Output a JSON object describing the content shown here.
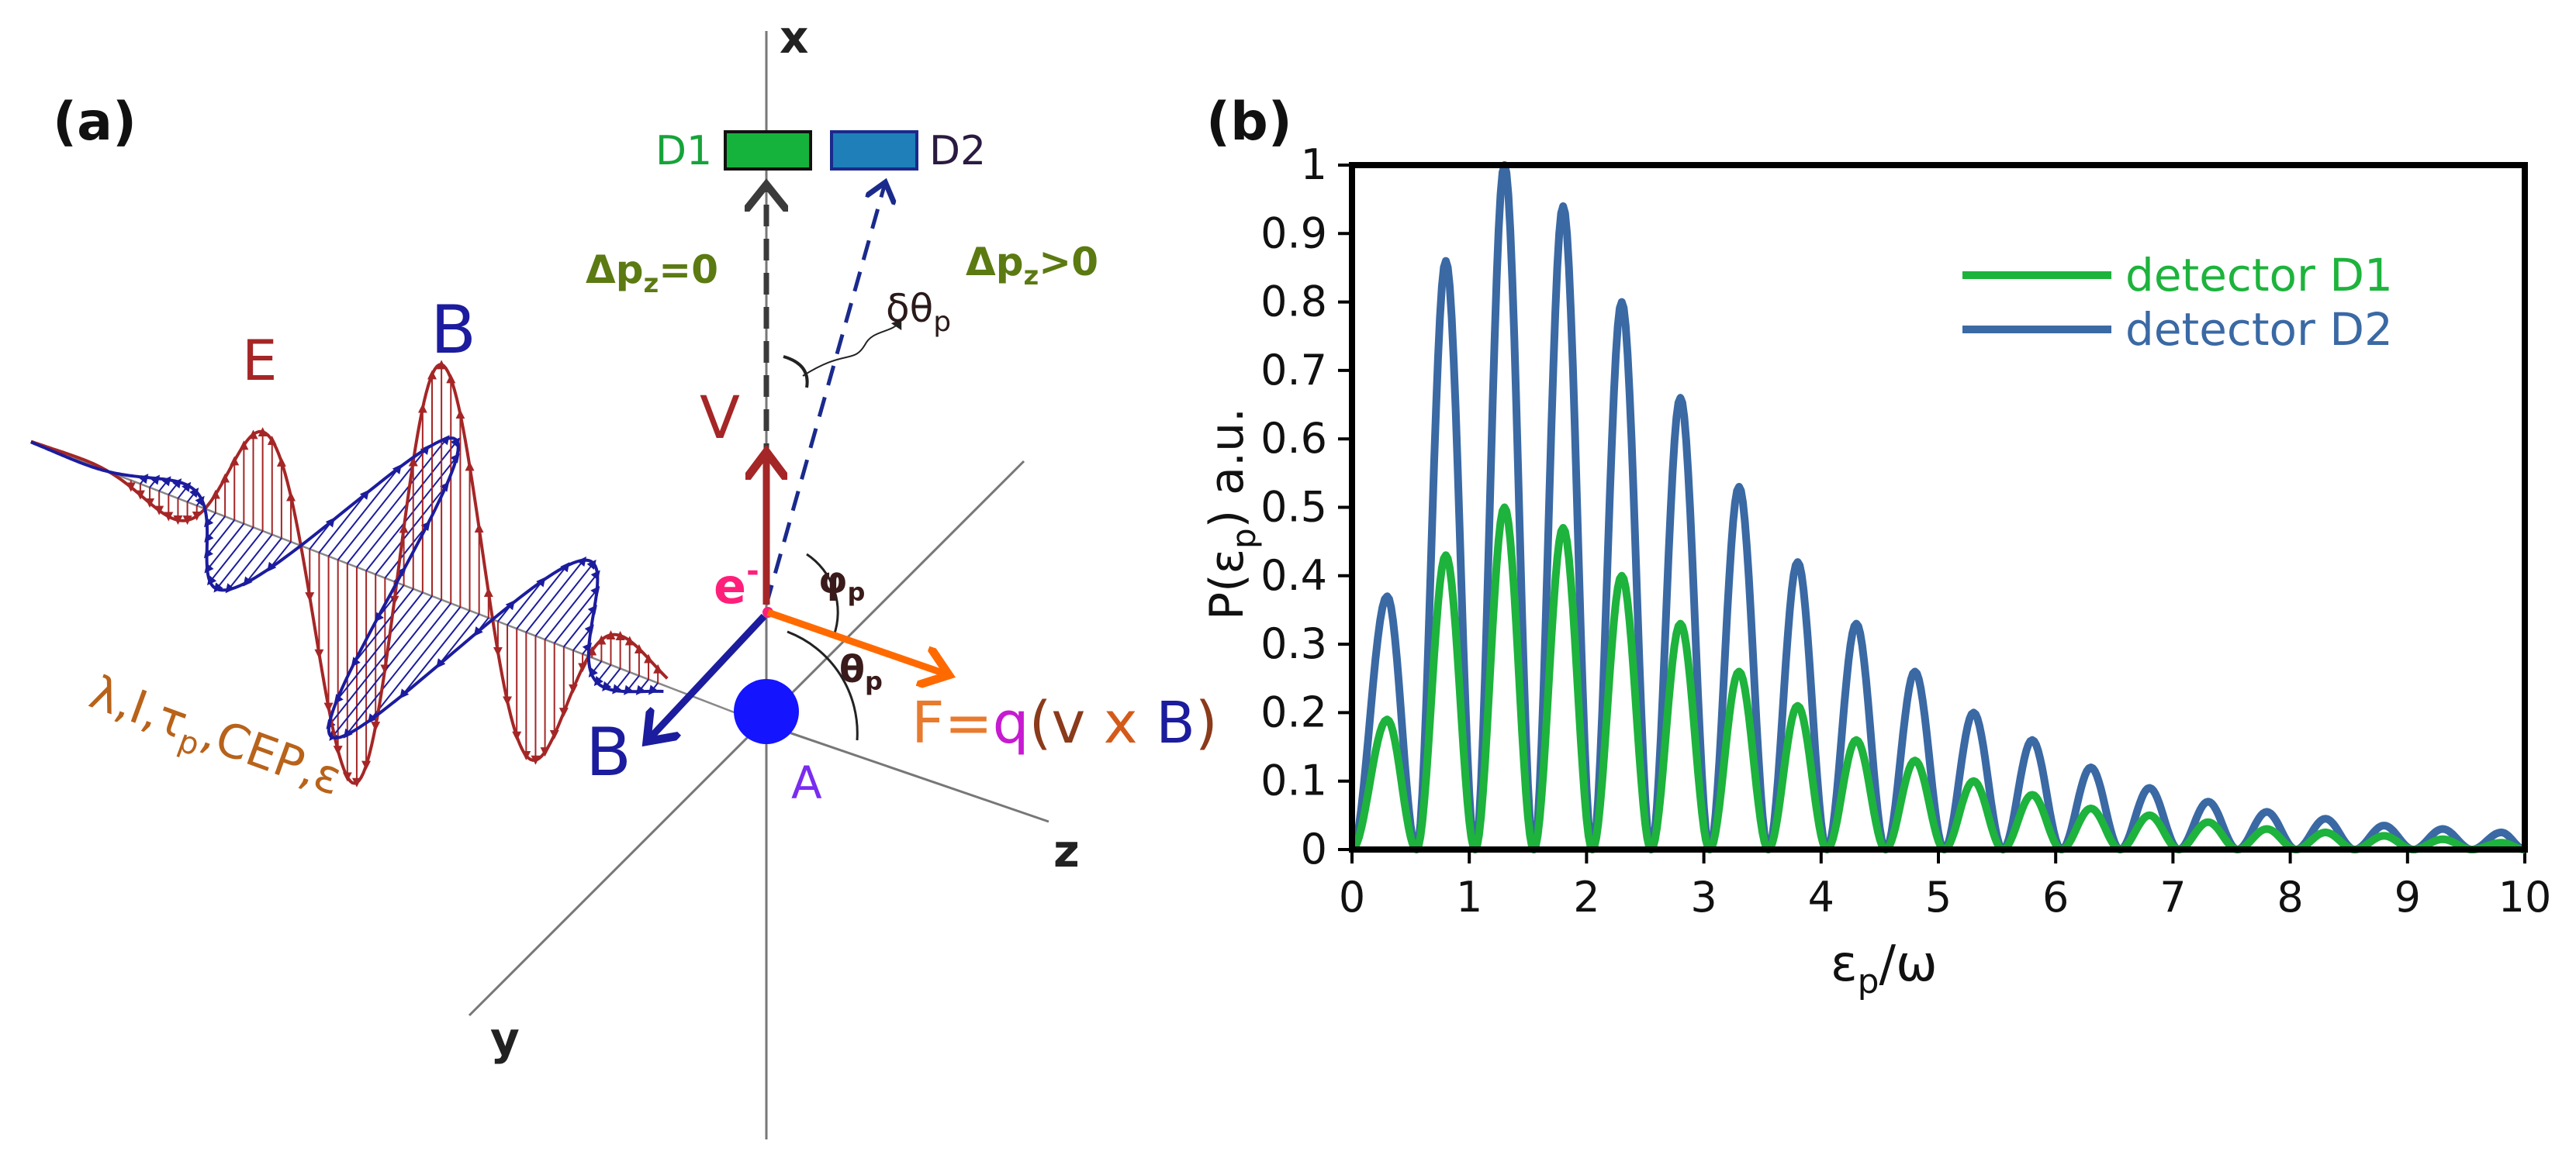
{
  "panel_a": {
    "label": "(a)",
    "axes": {
      "x": "x",
      "y": "y",
      "z": "z"
    },
    "detectors": {
      "d1": "D1",
      "d2": "D2"
    },
    "delta_pz_zero": {
      "main": "Δp",
      "sub": "z",
      "rest": "=0"
    },
    "delta_pz_pos": {
      "main": "Δp",
      "sub": "z",
      "rest": ">0"
    },
    "delta_theta": {
      "main": "δθ",
      "sub": "p"
    },
    "field_e": "E",
    "field_b": "B",
    "velocity": "V",
    "electron": {
      "main": "e",
      "sup": "-"
    },
    "phi": {
      "main": "φ",
      "sub": "p"
    },
    "theta": {
      "main": "θ",
      "sub": "p"
    },
    "force": {
      "lhs": "F=",
      "q": "q",
      "open": "(",
      "v": "v",
      "x": " x ",
      "b": "B",
      "close": ")"
    },
    "b_vector": "B",
    "atom": "A",
    "params": {
      "a": "λ,I,τ",
      "sub": "p",
      "b": ",CEP,ε"
    },
    "colors": {
      "e_field": "#a52626",
      "b_field": "#1c1c9e",
      "force_arrow": "#ff6a00",
      "dashed_d2": "#1a2a8c",
      "atom": "#1414ff",
      "label_green": "#5b7a12",
      "electron_label": "#ff1f7a",
      "d1_fill": "#16b33c",
      "d2_fill": "#1f7fb8"
    }
  },
  "panel_b": {
    "label": "(b)"
  },
  "chart_data": {
    "type": "line",
    "xlabel": {
      "main": "ε",
      "sub": "p",
      "rest": "/ω"
    },
    "ylabel": {
      "main": "P(ε",
      "sub": "p",
      "rest": ") a.u."
    },
    "xlim": [
      0,
      10
    ],
    "ylim": [
      0,
      1
    ],
    "x_ticks": [
      "0",
      "1",
      "2",
      "3",
      "4",
      "5",
      "6",
      "7",
      "8",
      "9",
      "10"
    ],
    "y_ticks": [
      "0",
      "0.1",
      "0.2",
      "0.3",
      "0.4",
      "0.5",
      "0.6",
      "0.7",
      "0.8",
      "0.9",
      "1"
    ],
    "legend_position": "top-right",
    "peak_x": [
      0.3,
      0.8,
      1.3,
      1.8,
      2.3,
      2.8,
      3.3,
      3.8,
      4.3,
      4.8,
      5.3,
      5.8,
      6.3,
      6.8,
      7.3,
      7.8,
      8.3,
      8.8,
      9.3,
      9.8
    ],
    "zero_x": [
      0,
      0.55,
      1.05,
      1.55,
      2.05,
      2.55,
      3.05,
      3.55,
      4.05,
      4.55,
      5.05,
      5.55,
      6.05,
      6.55,
      7.05,
      7.55,
      8.05,
      8.55,
      9.05,
      9.55,
      10
    ],
    "series": [
      {
        "name": "detector D1",
        "color": "#1db33c",
        "values": [
          0.19,
          0.43,
          0.5,
          0.47,
          0.4,
          0.33,
          0.26,
          0.21,
          0.16,
          0.13,
          0.1,
          0.08,
          0.06,
          0.05,
          0.04,
          0.03,
          0.025,
          0.02,
          0.015,
          0.01
        ]
      },
      {
        "name": "detector D2",
        "color": "#3a69a4",
        "values": [
          0.37,
          0.86,
          1.0,
          0.94,
          0.8,
          0.66,
          0.53,
          0.42,
          0.33,
          0.26,
          0.2,
          0.16,
          0.12,
          0.09,
          0.07,
          0.055,
          0.045,
          0.035,
          0.03,
          0.025
        ]
      }
    ]
  }
}
